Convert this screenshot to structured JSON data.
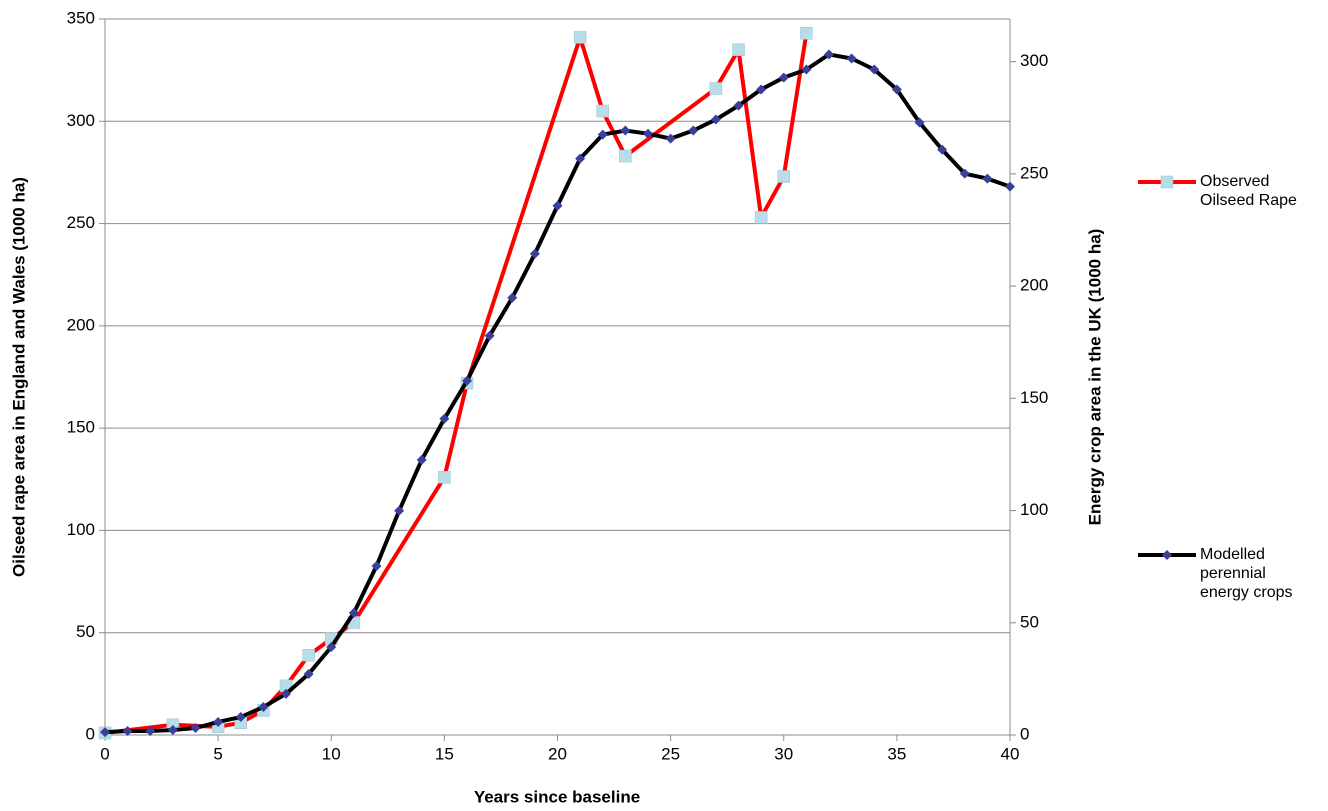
{
  "chart_data": {
    "type": "line",
    "x_label": "Years since baseline",
    "y_label": "Oilseed rape area in England and Wales (1000 ha)",
    "y2_label": "Energy crop area in the UK (1000 ha)",
    "xlim": [
      0,
      40
    ],
    "xticks": [
      0,
      5,
      10,
      15,
      20,
      25,
      30,
      35,
      40
    ],
    "ylim": [
      0,
      350
    ],
    "yticks": [
      0,
      50,
      100,
      150,
      200,
      250,
      300,
      350
    ],
    "y2lim": [
      0,
      319
    ],
    "y2ticks": [
      0,
      50,
      100,
      150,
      200,
      250,
      300
    ],
    "grid": true,
    "legend": "right",
    "series": [
      {
        "name": "Observed Oilseed Rape",
        "color": "#ff0000",
        "marker_color": "#b7dde8",
        "marker": "square",
        "x": [
          0,
          3,
          5,
          6,
          7,
          8,
          9,
          10,
          11,
          15,
          16,
          21,
          22,
          23,
          27,
          28,
          29,
          30,
          31
        ],
        "values": [
          1,
          5,
          4,
          6,
          12,
          24,
          39,
          47,
          55,
          126,
          172,
          341,
          305,
          283,
          316,
          335,
          253,
          273,
          343
        ]
      },
      {
        "name": "Modelled perennial energy crops",
        "color": "#000000",
        "marker_color": "#3b3f9c",
        "marker": "diamond",
        "axis": "y2",
        "x": [
          0,
          1,
          2,
          3,
          4,
          5,
          6,
          7,
          8,
          9,
          10,
          11,
          12,
          13,
          14,
          15,
          16,
          17,
          18,
          19,
          20,
          21,
          22,
          23,
          24,
          25,
          26,
          27,
          28,
          29,
          30,
          31,
          32,
          33,
          34,
          35,
          36,
          37,
          38,
          39,
          40
        ],
        "values": [
          1.3,
          1.8,
          1.8,
          2.2,
          3.1,
          5.8,
          8,
          12.5,
          18.3,
          27.2,
          39.2,
          54.4,
          75.3,
          99.9,
          122.6,
          140.9,
          157.8,
          177.9,
          194.8,
          214.4,
          235.8,
          256.8,
          267.5,
          269.3,
          267.9,
          265.7,
          269.3,
          274.2,
          280.4,
          287.6,
          292.9,
          296.5,
          303.2,
          301.4,
          296.5,
          287.6,
          272.9,
          260.8,
          250.1,
          247.9,
          244.3
        ]
      }
    ]
  }
}
